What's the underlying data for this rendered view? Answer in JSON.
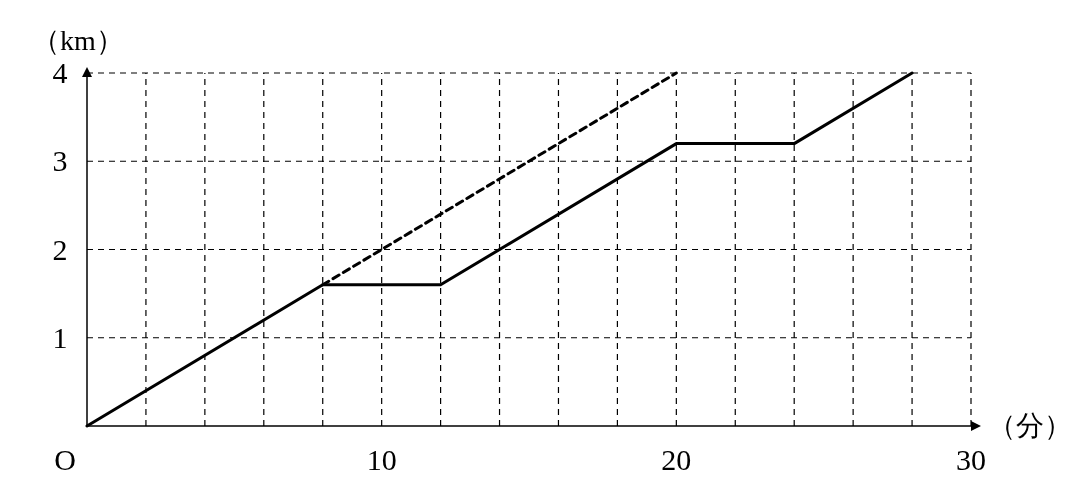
{
  "chart_data": {
    "type": "line",
    "xlabel": "（分）",
    "ylabel": "（km）",
    "xlim": [
      0,
      30
    ],
    "ylim": [
      0,
      4
    ],
    "annotations": [
      "O"
    ],
    "xticks": [
      {
        "value": 0,
        "label": null
      },
      {
        "value": 2,
        "label": null
      },
      {
        "value": 4,
        "label": null
      },
      {
        "value": 6,
        "label": null
      },
      {
        "value": 8,
        "label": null
      },
      10,
      {
        "value": 12,
        "label": null
      },
      {
        "value": 14,
        "label": null
      },
      {
        "value": 16,
        "label": null
      },
      {
        "value": 18,
        "label": null
      },
      20,
      {
        "value": 22,
        "label": null
      },
      {
        "value": 24,
        "label": null
      },
      {
        "value": 26,
        "label": null
      },
      {
        "value": 28,
        "label": null
      },
      30
    ],
    "yticks": [
      {
        "value": 0,
        "label": null
      },
      1,
      2,
      3,
      4
    ],
    "grid": true,
    "marker": "none",
    "series": [
      {
        "color": "#000000",
        "line_style": "solid",
        "x": [
          0,
          8,
          12,
          20,
          24,
          28
        ],
        "values": [
          0,
          1.6,
          1.6,
          3.2,
          3.2,
          4
        ]
      },
      {
        "color": "#000000",
        "line_style": "dashed",
        "x": [
          8,
          20
        ],
        "values": [
          1.6,
          4
        ]
      }
    ]
  }
}
